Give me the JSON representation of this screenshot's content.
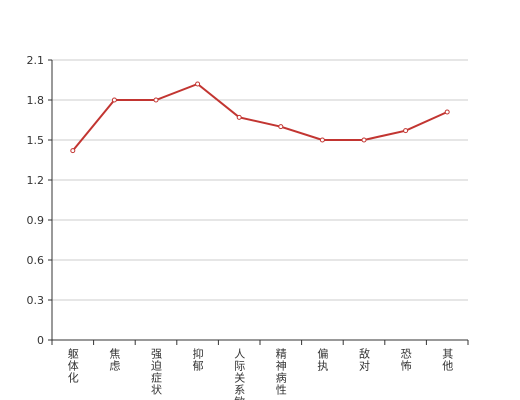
{
  "chart_data": {
    "type": "line",
    "categories": [
      "躯体化",
      "焦虑",
      "强迫症状",
      "抑郁",
      "人际关系敏感",
      "精神病性",
      "偏执",
      "敌对",
      "恐怖",
      "其他"
    ],
    "values": [
      1.42,
      1.8,
      1.8,
      1.92,
      1.67,
      1.6,
      1.5,
      1.5,
      1.57,
      1.71
    ],
    "color": "#c23531",
    "ylim": [
      0,
      2.1
    ],
    "yticks": [
      0,
      0.3,
      0.6,
      0.9,
      1.2,
      1.5,
      1.8,
      2.1
    ],
    "grid": true
  }
}
